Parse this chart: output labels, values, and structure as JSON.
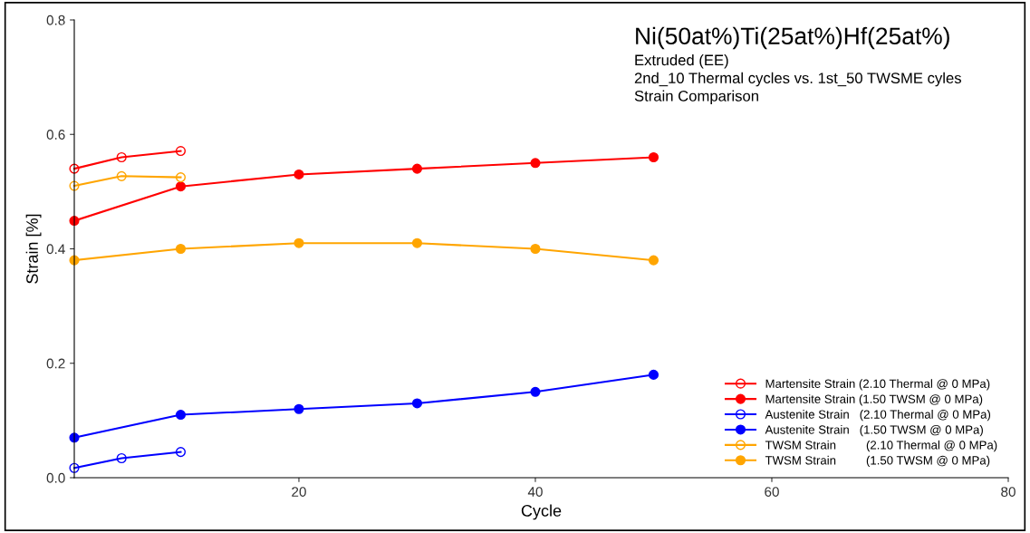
{
  "chart_data": {
    "type": "line",
    "title": "Ni(50at%)Ti(25at%)Hf(25at%)",
    "subtitle": "Extruded (EE)\n2nd_10 Thermal cycles vs. 1st_50 TWSME cyles\nStrain Comparison",
    "xlabel": "Cycle",
    "ylabel": "Strain [%]",
    "xlim": [
      1,
      80
    ],
    "xticks": [
      20,
      40,
      60,
      80
    ],
    "ylim": [
      0,
      0.8
    ],
    "yticks": [
      {
        "value": 0,
        "label": "0.0"
      },
      {
        "value": 0.2,
        "label": "0.2"
      },
      {
        "value": 0.4,
        "label": "0.4"
      },
      {
        "value": 0.6,
        "label": "0.6"
      },
      {
        "value": 0.8,
        "label": "0.8"
      }
    ],
    "grid": false,
    "legend": "bottom right",
    "marker": "circle",
    "line_style": "solid",
    "series": [
      {
        "name": "Martensite Strain (2.10 Thermal @ 0 MPa)",
        "color": "#ff0000",
        "x": [
          1,
          5,
          10
        ],
        "values": [
          0.54,
          0.56,
          0.571
        ]
      },
      {
        "name": "Martensite Strain (1.50 TWSM @ 0 MPa)",
        "color": "#ff0000",
        "x": [
          1,
          10,
          20,
          30,
          40,
          50
        ],
        "values": [
          0.449,
          0.509,
          0.53,
          0.54,
          0.55,
          0.56
        ]
      },
      {
        "name": "Austenite Strain   (2.10 Thermal @ 0 MPa)",
        "color": "#0000ff",
        "x": [
          1,
          5,
          10
        ],
        "values": [
          0.017,
          0.034,
          0.045
        ]
      },
      {
        "name": "Austenite Strain   (1.50 TWSM @ 0 MPa)",
        "color": "#0000ff",
        "x": [
          1,
          10,
          20,
          30,
          40,
          50
        ],
        "values": [
          0.07,
          0.11,
          0.12,
          0.13,
          0.15,
          0.18
        ]
      },
      {
        "name": "TWSM Strain         (2.10 Thermal @ 0 MPa)",
        "color": "#ffa500",
        "x": [
          1,
          5,
          10
        ],
        "values": [
          0.51,
          0.527,
          0.525
        ]
      },
      {
        "name": "TWSM Strain         (1.50 TWSM @ 0 MPa)",
        "color": "#ffa500",
        "x": [
          1,
          10,
          20,
          30,
          40,
          50
        ],
        "values": [
          0.38,
          0.4,
          0.41,
          0.41,
          0.4,
          0.38
        ]
      }
    ]
  }
}
